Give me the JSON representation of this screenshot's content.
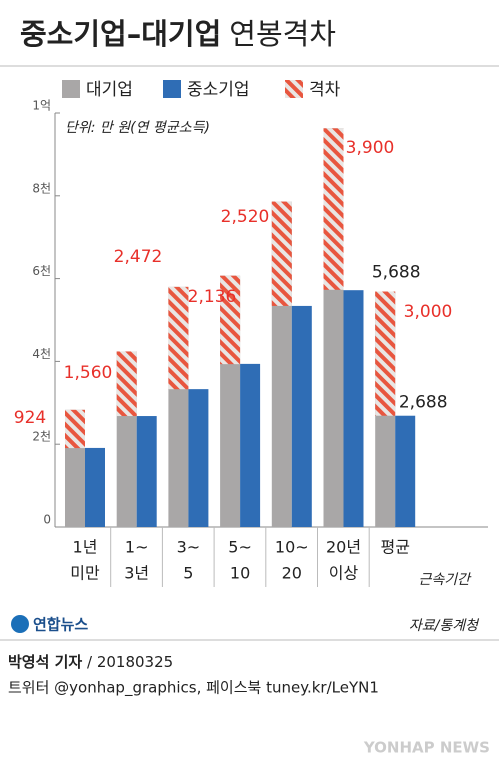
{
  "chart_data": {
    "type": "bar",
    "title": "중소기업–대기업",
    "title_rest": "연봉격차",
    "unit_note": "단위: 만 원(연 평균소득)",
    "x_label": "근속기간",
    "source": "자료/통계청",
    "categories": [
      [
        "1년",
        "미만"
      ],
      [
        "1~",
        "3년"
      ],
      [
        "3~",
        "5"
      ],
      [
        "5~",
        "10"
      ],
      [
        "10~",
        "20"
      ],
      [
        "20년",
        "이상"
      ],
      [
        "평균"
      ]
    ],
    "series": [
      {
        "name": "대기업",
        "color": "#a9a7a7",
        "values": [
          2830,
          4240,
          5800,
          6070,
          7860,
          9630,
          5688
        ],
        "value_labels": [
          null,
          null,
          null,
          null,
          null,
          null,
          "5,688"
        ]
      },
      {
        "name": "중소기업",
        "color": "#2f6db5",
        "values": [
          1910,
          2680,
          3330,
          3940,
          5340,
          5720,
          2688
        ],
        "value_labels": [
          null,
          null,
          null,
          null,
          null,
          null,
          "2,688"
        ]
      },
      {
        "name": "격차",
        "color": "#e8563f",
        "values": [
          924,
          1560,
          2472,
          2136,
          2520,
          3900,
          3000
        ],
        "value_labels": [
          "924",
          "1,560",
          "2,472",
          "2,136",
          "2,520",
          "3,900",
          "3,000"
        ]
      }
    ],
    "ylim": [
      0,
      10000
    ],
    "yticks": [
      0,
      {
        "value": 2000,
        "label": "2천"
      },
      {
        "value": 4000,
        "label": "4천"
      },
      {
        "value": 6000,
        "label": "6천"
      },
      {
        "value": 8000,
        "label": "8천"
      },
      {
        "value": 10000,
        "label": "1억"
      }
    ],
    "grid": false
  },
  "footer": {
    "logo": "연합뉴스",
    "byline": "박영석 기자",
    "date": "20180325",
    "social": "트위터 @yonhap_graphics, 페이스북 tuney.kr/LeYN1",
    "watermark": "YONHAP NEWS"
  }
}
